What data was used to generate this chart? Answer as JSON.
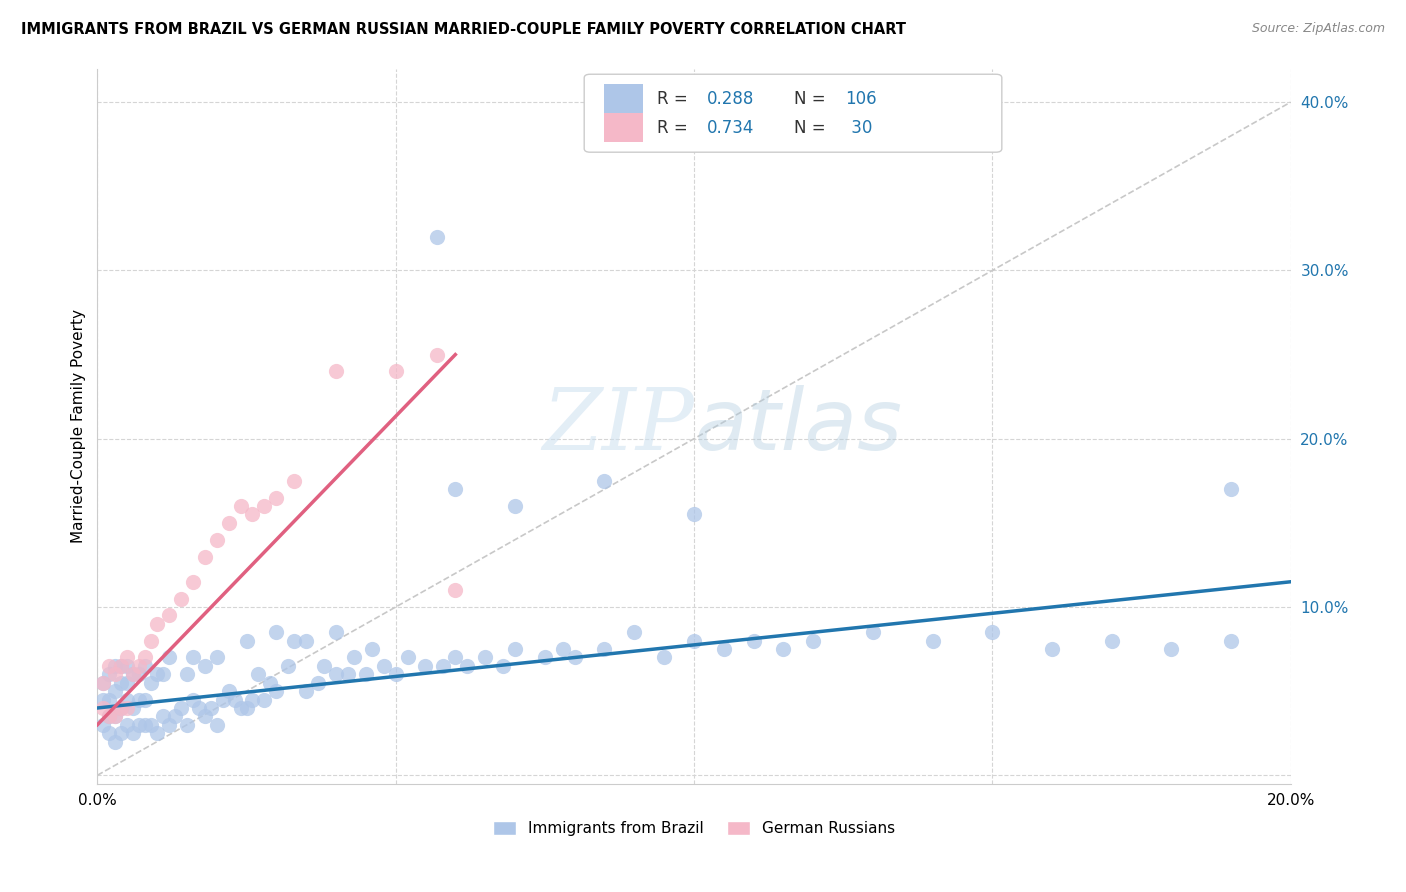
{
  "title": "IMMIGRANTS FROM BRAZIL VS GERMAN RUSSIAN MARRIED-COUPLE FAMILY POVERTY CORRELATION CHART",
  "source": "Source: ZipAtlas.com",
  "ylabel": "Married-Couple Family Poverty",
  "xlim": [
    0.0,
    0.2
  ],
  "ylim": [
    -0.005,
    0.42
  ],
  "y_ticks": [
    0.0,
    0.1,
    0.2,
    0.3,
    0.4
  ],
  "y_tick_labels": [
    "",
    "10.0%",
    "20.0%",
    "30.0%",
    "40.0%"
  ],
  "x_ticks": [
    0.0,
    0.05,
    0.1,
    0.15,
    0.2
  ],
  "x_tick_labels": [
    "0.0%",
    "",
    "",
    "",
    "20.0%"
  ],
  "legend_brazil_label": "Immigrants from Brazil",
  "legend_german_label": "German Russians",
  "blue_color": "#aec6e8",
  "blue_line_color": "#2176ae",
  "pink_color": "#f5b8c8",
  "pink_line_color": "#e06080",
  "diag_line_color": "#c8c8c8",
  "watermark_zip": "ZIP",
  "watermark_atlas": "atlas",
  "brazil_scatter_x": [
    0.001,
    0.001,
    0.001,
    0.002,
    0.002,
    0.002,
    0.002,
    0.003,
    0.003,
    0.003,
    0.003,
    0.004,
    0.004,
    0.004,
    0.004,
    0.005,
    0.005,
    0.005,
    0.005,
    0.006,
    0.006,
    0.006,
    0.007,
    0.007,
    0.007,
    0.008,
    0.008,
    0.008,
    0.009,
    0.009,
    0.01,
    0.01,
    0.011,
    0.011,
    0.012,
    0.012,
    0.013,
    0.014,
    0.015,
    0.015,
    0.016,
    0.016,
    0.017,
    0.018,
    0.018,
    0.019,
    0.02,
    0.02,
    0.021,
    0.022,
    0.023,
    0.024,
    0.025,
    0.025,
    0.026,
    0.027,
    0.028,
    0.029,
    0.03,
    0.03,
    0.032,
    0.033,
    0.035,
    0.035,
    0.037,
    0.038,
    0.04,
    0.04,
    0.042,
    0.043,
    0.045,
    0.046,
    0.048,
    0.05,
    0.052,
    0.055,
    0.058,
    0.06,
    0.062,
    0.065,
    0.068,
    0.07,
    0.075,
    0.078,
    0.08,
    0.085,
    0.09,
    0.095,
    0.1,
    0.105,
    0.11,
    0.115,
    0.12,
    0.13,
    0.14,
    0.15,
    0.16,
    0.17,
    0.18,
    0.19,
    0.085,
    0.057,
    0.1,
    0.06,
    0.07,
    0.19
  ],
  "brazil_scatter_y": [
    0.03,
    0.045,
    0.055,
    0.025,
    0.035,
    0.045,
    0.06,
    0.02,
    0.035,
    0.05,
    0.065,
    0.025,
    0.04,
    0.055,
    0.065,
    0.03,
    0.045,
    0.055,
    0.065,
    0.025,
    0.04,
    0.06,
    0.03,
    0.045,
    0.06,
    0.03,
    0.045,
    0.065,
    0.03,
    0.055,
    0.025,
    0.06,
    0.035,
    0.06,
    0.03,
    0.07,
    0.035,
    0.04,
    0.03,
    0.06,
    0.045,
    0.07,
    0.04,
    0.035,
    0.065,
    0.04,
    0.03,
    0.07,
    0.045,
    0.05,
    0.045,
    0.04,
    0.04,
    0.08,
    0.045,
    0.06,
    0.045,
    0.055,
    0.05,
    0.085,
    0.065,
    0.08,
    0.05,
    0.08,
    0.055,
    0.065,
    0.06,
    0.085,
    0.06,
    0.07,
    0.06,
    0.075,
    0.065,
    0.06,
    0.07,
    0.065,
    0.065,
    0.07,
    0.065,
    0.07,
    0.065,
    0.075,
    0.07,
    0.075,
    0.07,
    0.075,
    0.085,
    0.07,
    0.08,
    0.075,
    0.08,
    0.075,
    0.08,
    0.085,
    0.08,
    0.085,
    0.075,
    0.08,
    0.075,
    0.08,
    0.175,
    0.32,
    0.155,
    0.17,
    0.16,
    0.17
  ],
  "german_scatter_x": [
    0.001,
    0.001,
    0.002,
    0.002,
    0.003,
    0.003,
    0.004,
    0.004,
    0.005,
    0.005,
    0.006,
    0.007,
    0.008,
    0.009,
    0.01,
    0.012,
    0.014,
    0.016,
    0.018,
    0.02,
    0.022,
    0.024,
    0.026,
    0.028,
    0.03,
    0.033,
    0.04,
    0.05,
    0.057,
    0.06
  ],
  "german_scatter_y": [
    0.04,
    0.055,
    0.035,
    0.065,
    0.035,
    0.06,
    0.04,
    0.065,
    0.04,
    0.07,
    0.06,
    0.065,
    0.07,
    0.08,
    0.09,
    0.095,
    0.105,
    0.115,
    0.13,
    0.14,
    0.15,
    0.16,
    0.155,
    0.16,
    0.165,
    0.175,
    0.24,
    0.24,
    0.25,
    0.11
  ],
  "brazil_trend_x": [
    0.0,
    0.2
  ],
  "brazil_trend_y": [
    0.04,
    0.115
  ],
  "german_trend_x": [
    0.0,
    0.06
  ],
  "german_trend_y": [
    0.03,
    0.25
  ],
  "diag_line_x": [
    0.0,
    0.2
  ],
  "diag_line_y": [
    0.0,
    0.4
  ]
}
